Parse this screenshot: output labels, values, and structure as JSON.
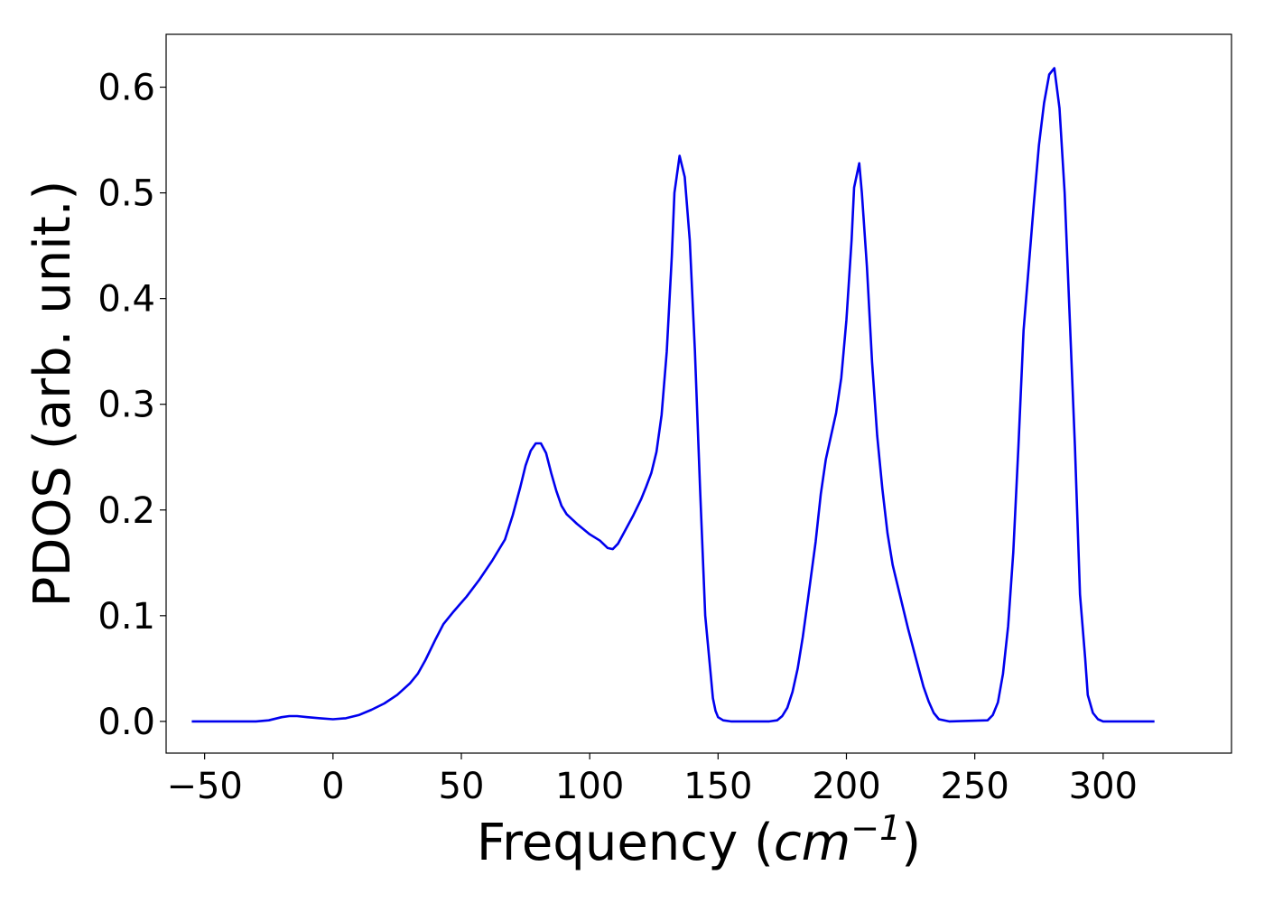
{
  "chart_data": {
    "type": "line",
    "title": "",
    "xlabel": "Frequency (",
    "xlabel_math": "cm",
    "xlabel_sup": "−1",
    "xlabel_close": ")",
    "ylabel": "PDOS (arb. unit.)",
    "xlim": [
      -65,
      350
    ],
    "ylim": [
      -0.03,
      0.65
    ],
    "xticks": [
      -50,
      0,
      50,
      100,
      150,
      200,
      250,
      300
    ],
    "xtick_labels": [
      "−50",
      "0",
      "50",
      "100",
      "150",
      "200",
      "250",
      "300"
    ],
    "yticks": [
      0.0,
      0.1,
      0.2,
      0.3,
      0.4,
      0.5,
      0.6
    ],
    "ytick_labels": [
      "0.0",
      "0.1",
      "0.2",
      "0.3",
      "0.4",
      "0.5",
      "0.6"
    ],
    "grid": false,
    "series": [
      {
        "color": "#0000ee",
        "points": [
          [
            -55,
            0.0
          ],
          [
            -40,
            0.0
          ],
          [
            -30,
            0.0
          ],
          [
            -25,
            0.001
          ],
          [
            -20,
            0.004
          ],
          [
            -17,
            0.005
          ],
          [
            -14,
            0.005
          ],
          [
            -10,
            0.004
          ],
          [
            -5,
            0.003
          ],
          [
            0,
            0.002
          ],
          [
            5,
            0.003
          ],
          [
            10,
            0.006
          ],
          [
            15,
            0.011
          ],
          [
            20,
            0.017
          ],
          [
            25,
            0.025
          ],
          [
            30,
            0.036
          ],
          [
            33,
            0.045
          ],
          [
            36,
            0.058
          ],
          [
            40,
            0.078
          ],
          [
            43,
            0.092
          ],
          [
            47,
            0.104
          ],
          [
            52,
            0.118
          ],
          [
            57,
            0.134
          ],
          [
            62,
            0.152
          ],
          [
            67,
            0.172
          ],
          [
            70,
            0.195
          ],
          [
            73,
            0.222
          ],
          [
            75,
            0.242
          ],
          [
            77,
            0.256
          ],
          [
            79,
            0.263
          ],
          [
            81,
            0.263
          ],
          [
            83,
            0.254
          ],
          [
            85,
            0.235
          ],
          [
            87,
            0.218
          ],
          [
            89,
            0.204
          ],
          [
            91,
            0.196
          ],
          [
            95,
            0.187
          ],
          [
            100,
            0.177
          ],
          [
            104,
            0.171
          ],
          [
            107,
            0.164
          ],
          [
            109,
            0.163
          ],
          [
            111,
            0.168
          ],
          [
            113,
            0.177
          ],
          [
            117,
            0.195
          ],
          [
            120,
            0.21
          ],
          [
            122,
            0.222
          ],
          [
            124,
            0.235
          ],
          [
            126,
            0.255
          ],
          [
            128,
            0.29
          ],
          [
            130,
            0.35
          ],
          [
            132,
            0.44
          ],
          [
            133,
            0.5
          ],
          [
            135,
            0.535
          ],
          [
            137,
            0.515
          ],
          [
            139,
            0.455
          ],
          [
            141,
            0.35
          ],
          [
            143,
            0.22
          ],
          [
            145,
            0.1
          ],
          [
            147,
            0.048
          ],
          [
            148,
            0.022
          ],
          [
            149,
            0.01
          ],
          [
            150,
            0.004
          ],
          [
            152,
            0.001
          ],
          [
            155,
            0.0
          ],
          [
            160,
            0.0
          ],
          [
            170,
            0.0
          ],
          [
            173,
            0.001
          ],
          [
            175,
            0.005
          ],
          [
            177,
            0.013
          ],
          [
            179,
            0.028
          ],
          [
            181,
            0.05
          ],
          [
            183,
            0.08
          ],
          [
            185,
            0.115
          ],
          [
            188,
            0.17
          ],
          [
            190,
            0.215
          ],
          [
            192,
            0.248
          ],
          [
            194,
            0.27
          ],
          [
            196,
            0.292
          ],
          [
            198,
            0.325
          ],
          [
            200,
            0.38
          ],
          [
            202,
            0.455
          ],
          [
            203,
            0.505
          ],
          [
            205,
            0.528
          ],
          [
            206,
            0.5
          ],
          [
            208,
            0.43
          ],
          [
            210,
            0.34
          ],
          [
            212,
            0.27
          ],
          [
            214,
            0.22
          ],
          [
            216,
            0.178
          ],
          [
            218,
            0.148
          ],
          [
            221,
            0.118
          ],
          [
            224,
            0.088
          ],
          [
            227,
            0.06
          ],
          [
            230,
            0.033
          ],
          [
            232,
            0.019
          ],
          [
            234,
            0.008
          ],
          [
            236,
            0.002
          ],
          [
            240,
            0.0
          ],
          [
            255,
            0.001
          ],
          [
            257,
            0.006
          ],
          [
            259,
            0.018
          ],
          [
            261,
            0.045
          ],
          [
            263,
            0.09
          ],
          [
            265,
            0.16
          ],
          [
            267,
            0.26
          ],
          [
            269,
            0.37
          ],
          [
            271,
            0.43
          ],
          [
            273,
            0.49
          ],
          [
            275,
            0.545
          ],
          [
            277,
            0.585
          ],
          [
            279,
            0.612
          ],
          [
            281,
            0.618
          ],
          [
            283,
            0.58
          ],
          [
            285,
            0.5
          ],
          [
            287,
            0.38
          ],
          [
            289,
            0.26
          ],
          [
            291,
            0.12
          ],
          [
            293,
            0.06
          ],
          [
            294,
            0.025
          ],
          [
            296,
            0.008
          ],
          [
            298,
            0.002
          ],
          [
            300,
            0.0
          ],
          [
            310,
            0.0
          ],
          [
            320,
            0.0
          ]
        ]
      }
    ]
  }
}
